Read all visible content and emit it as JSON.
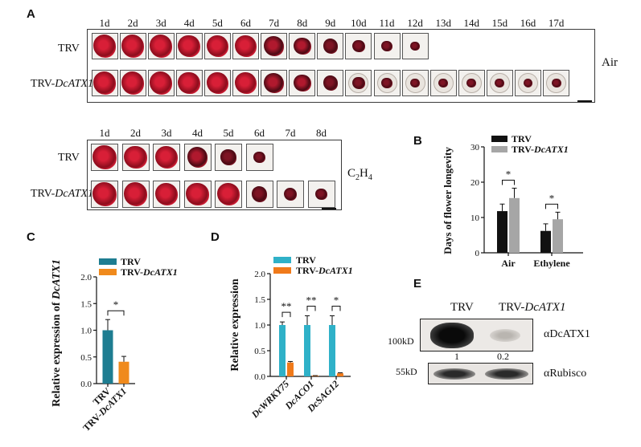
{
  "panels": {
    "A": "A",
    "B": "B",
    "C": "C",
    "D": "D",
    "E": "E"
  },
  "panelA": {
    "air": {
      "days": [
        "1d",
        "2d",
        "3d",
        "4d",
        "5d",
        "6d",
        "7d",
        "8d",
        "9d",
        "10d",
        "11d",
        "12d",
        "13d",
        "14d",
        "15d",
        "16d",
        "17d"
      ],
      "row1_label": "TRV",
      "row2_label_prefix": "TRV-",
      "row2_label_gene": "DcATX1",
      "condition": "Air"
    },
    "ethylene": {
      "days": [
        "1d",
        "2d",
        "3d",
        "4d",
        "5d",
        "6d",
        "7d",
        "8d"
      ],
      "row1_label": "TRV",
      "row2_label_prefix": "TRV-",
      "row2_label_gene": "DcATX1",
      "condition_base": "C",
      "condition_sub1": "2",
      "condition_mid": "H",
      "condition_sub2": "4"
    }
  },
  "panelE": {
    "col1": "TRV",
    "col2_prefix": "TRV-",
    "col2_gene": "DcATX1",
    "marker1": "100kD",
    "marker2": "55kD",
    "band1": "αDcATX1",
    "band2": "αRubisco",
    "quant1": "1",
    "quant2": "0.2"
  },
  "chart_data": [
    {
      "type": "bar",
      "panel": "B",
      "ylabel": "Days of flower longevity",
      "categories": [
        "Air",
        "Ethylene"
      ],
      "series": [
        {
          "name": "TRV",
          "values": [
            11.8,
            6.2
          ],
          "errors": [
            2.0,
            2.0
          ],
          "color": "#111111"
        },
        {
          "name": "TRV-DcATX1",
          "values": [
            15.5,
            9.5
          ],
          "errors": [
            2.8,
            2.0
          ],
          "color": "#a6a6a6"
        }
      ],
      "ylim": [
        0,
        30
      ],
      "yticks": [
        "0",
        "10",
        "20",
        "30"
      ],
      "significance": [
        "*",
        "*"
      ],
      "legend_position": "top"
    },
    {
      "type": "bar",
      "panel": "C",
      "ylabel": "Relative expression of DcATX1",
      "categories": [
        "TRV",
        "TRV-DcATX1"
      ],
      "values": [
        1.0,
        0.41
      ],
      "errors": [
        0.2,
        0.1
      ],
      "colors": [
        "#1e7d91",
        "#f08a1c"
      ],
      "series_names": [
        "TRV",
        "TRV-DcATX1"
      ],
      "ylim": [
        0,
        2.0
      ],
      "yticks": [
        "0.0",
        "0.5",
        "1.0",
        "1.5",
        "2.0"
      ],
      "significance": "*"
    },
    {
      "type": "bar",
      "panel": "D",
      "ylabel": "Relative expression",
      "categories": [
        "DcWRKY75",
        "DcACO1",
        "DcSAG12"
      ],
      "series": [
        {
          "name": "TRV",
          "values": [
            1.0,
            1.0,
            1.0
          ],
          "errors": [
            0.06,
            0.18,
            0.18
          ],
          "color": "#2fb1c8"
        },
        {
          "name": "TRV-DcATX1",
          "values": [
            0.27,
            0.01,
            0.06
          ],
          "errors": [
            0.02,
            0.005,
            0.01
          ],
          "color": "#f07a1a"
        }
      ],
      "ylim": [
        0,
        2.0
      ],
      "yticks": [
        "0.0",
        "0.5",
        "1.0",
        "1.5",
        "2.0"
      ],
      "significance": [
        "**",
        "**",
        "*"
      ]
    }
  ]
}
